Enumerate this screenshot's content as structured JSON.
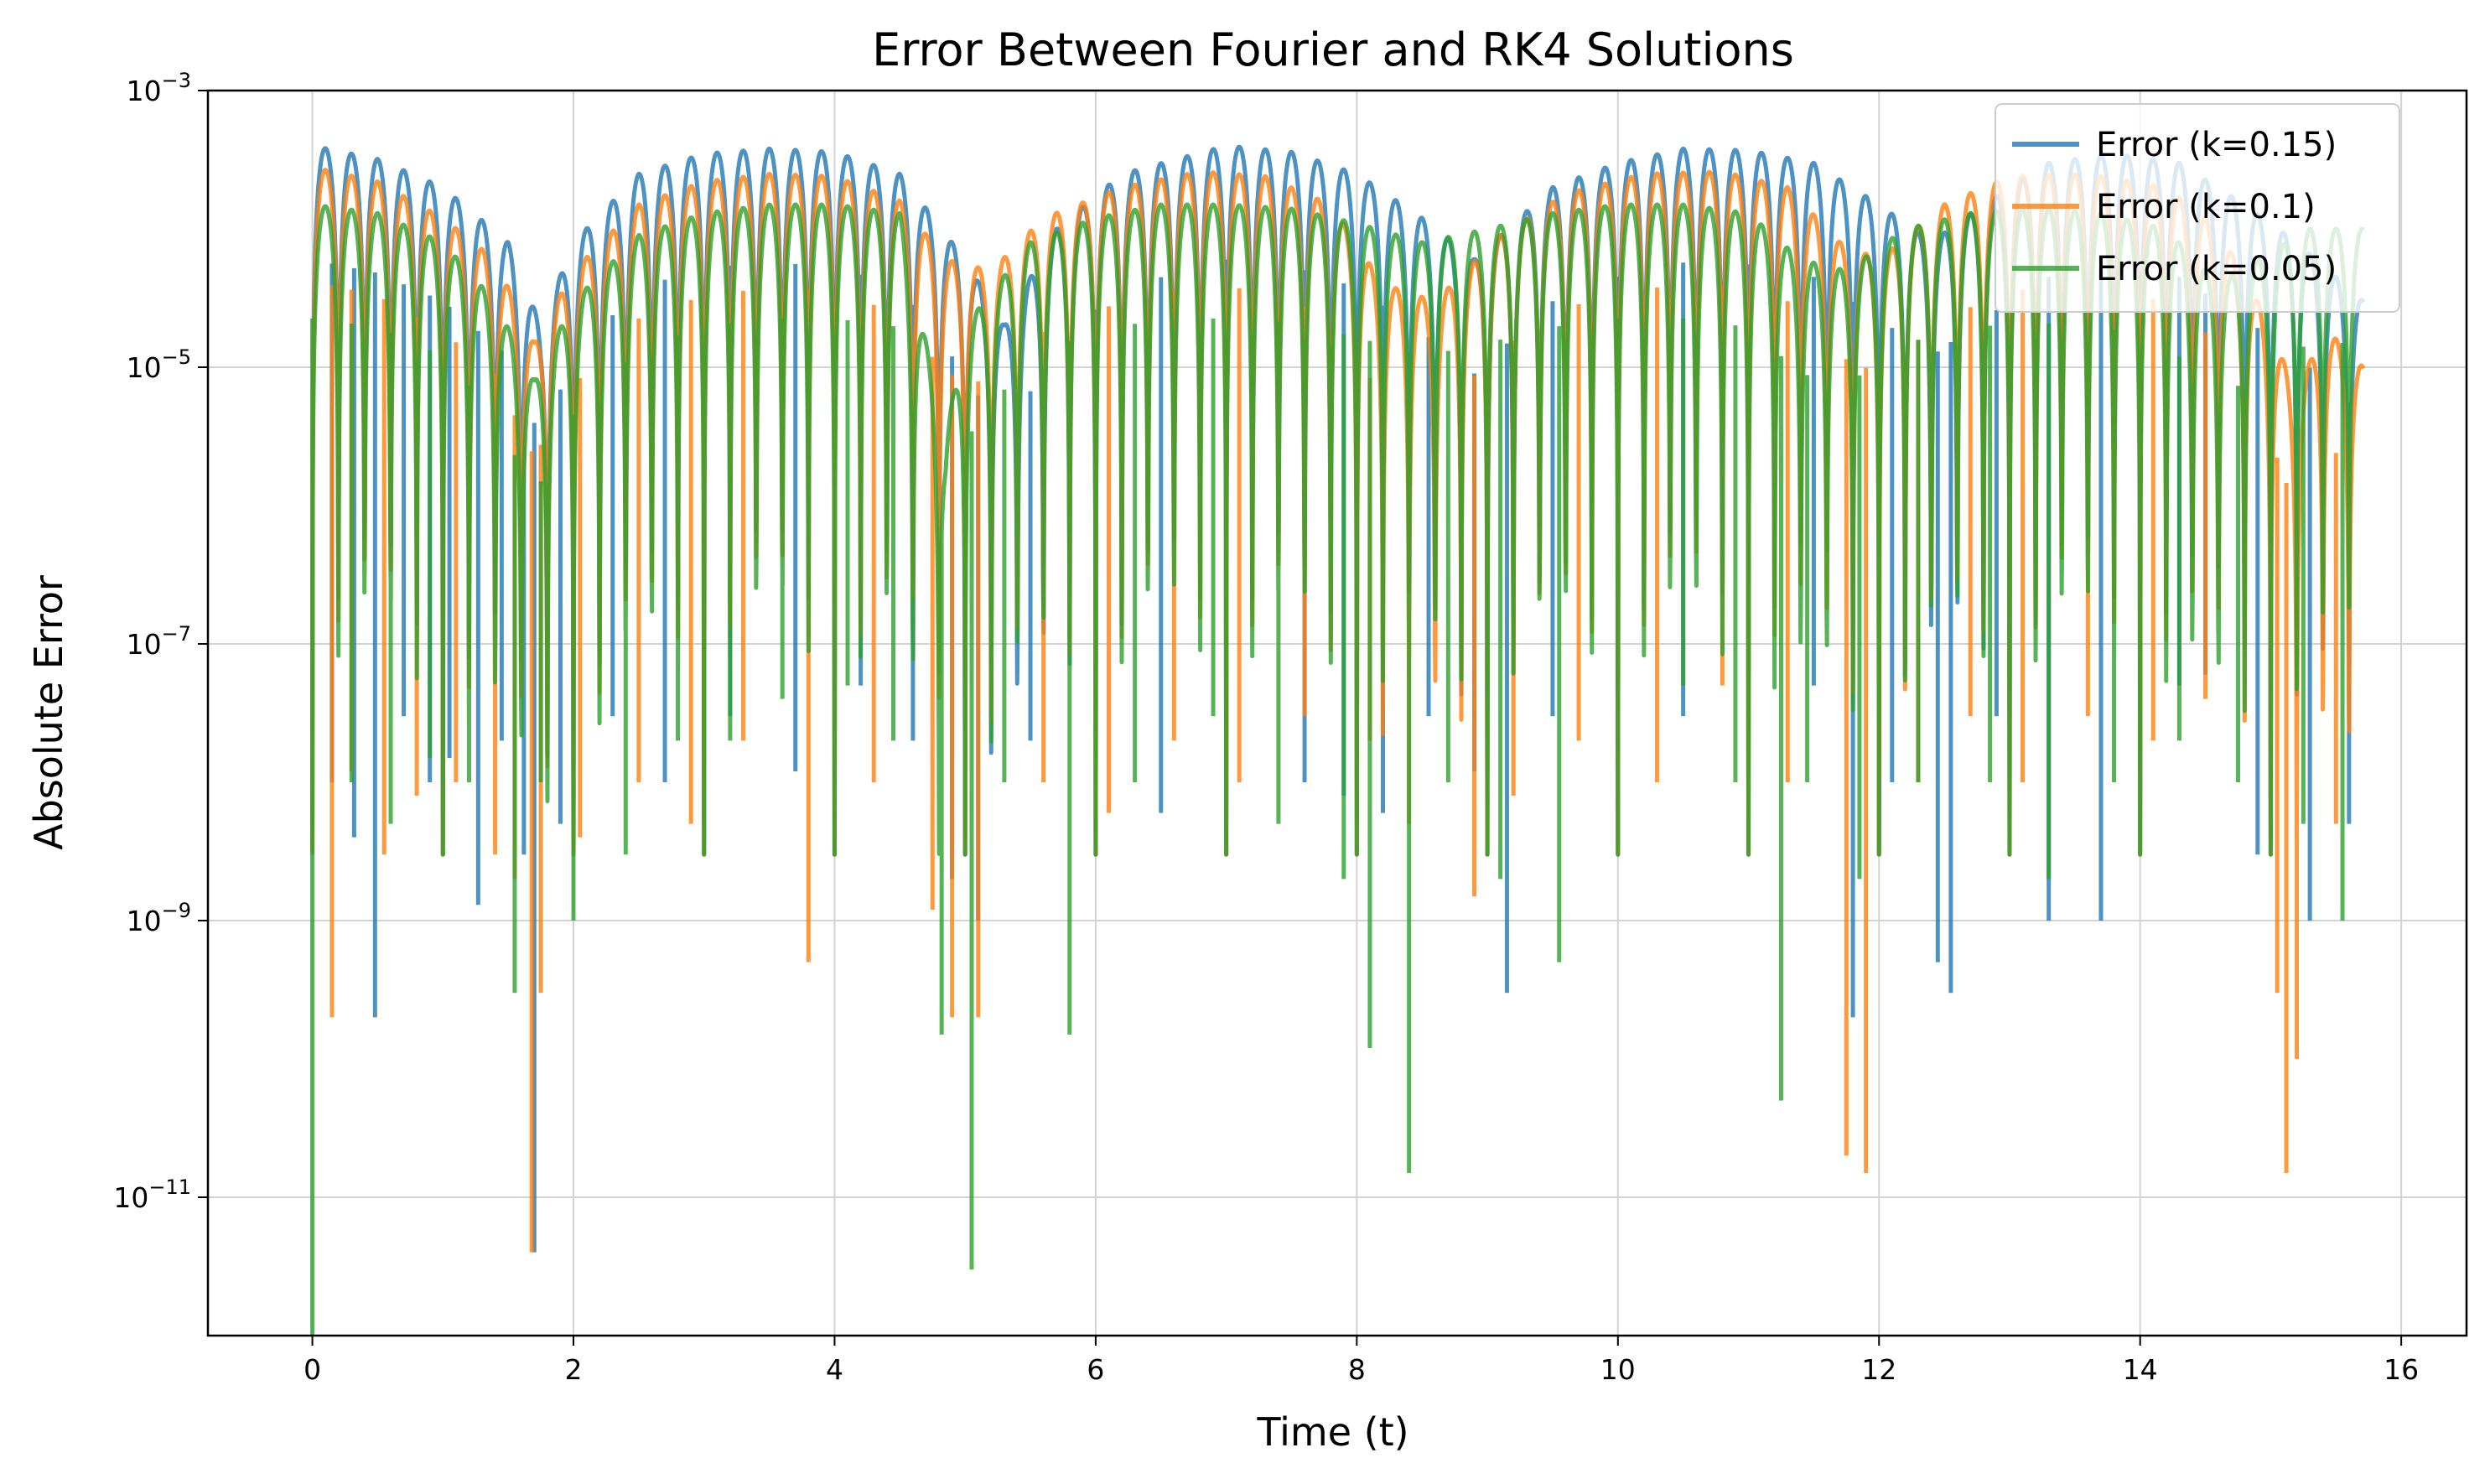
{
  "chart_data": {
    "type": "line",
    "title": "Error Between Fourier and RK4 Solutions",
    "xlabel": "Time (t)",
    "ylabel": "Absolute Error",
    "xlim": [
      -0.8,
      16.5
    ],
    "ylim": [
      1e-12,
      0.001
    ],
    "yscale": "log",
    "grid": true,
    "legend_position": "top-right",
    "x_ticks": [
      {
        "value": 0,
        "label": "0"
      },
      {
        "value": 2,
        "label": "2"
      },
      {
        "value": 4,
        "label": "4"
      },
      {
        "value": 6,
        "label": "6"
      },
      {
        "value": 8,
        "label": "8"
      },
      {
        "value": 10,
        "label": "10"
      },
      {
        "value": 12,
        "label": "12"
      },
      {
        "value": 14,
        "label": "14"
      },
      {
        "value": 16,
        "label": "16"
      }
    ],
    "y_ticks": [
      {
        "value": 1e-11,
        "base": "10",
        "exp": "−11"
      },
      {
        "value": 1e-09,
        "base": "10",
        "exp": "−9"
      },
      {
        "value": 1e-07,
        "base": "10",
        "exp": "−7"
      },
      {
        "value": 1e-05,
        "base": "10",
        "exp": "−5"
      },
      {
        "value": 0.001,
        "base": "10",
        "exp": "−3"
      }
    ],
    "series": [
      {
        "name": "Error (k=0.15)",
        "color": "#1f77b4",
        "t_max": 15.71,
        "oscillation_period": 0.2,
        "envelope": [
          [
            0.0,
            0.0004
          ],
          [
            0.5,
            0.00032
          ],
          [
            1.0,
            0.0002
          ],
          [
            1.5,
            8e-05
          ],
          [
            1.75,
            2e-05
          ],
          [
            2.0,
            8e-05
          ],
          [
            2.5,
            0.00025
          ],
          [
            3.0,
            0.00035
          ],
          [
            3.5,
            0.00038
          ],
          [
            4.0,
            0.00036
          ],
          [
            4.5,
            0.00025
          ],
          [
            5.0,
            6e-05
          ],
          [
            5.3,
            2e-05
          ],
          [
            5.7,
            0.0001
          ],
          [
            6.2,
            0.00025
          ],
          [
            7.0,
            0.0004
          ],
          [
            7.5,
            0.00036
          ],
          [
            8.0,
            0.00025
          ],
          [
            8.5,
            0.00012
          ],
          [
            8.9,
            6e-05
          ],
          [
            9.5,
            0.0002
          ],
          [
            10.0,
            0.0003
          ],
          [
            10.5,
            0.00038
          ],
          [
            11.0,
            0.00037
          ],
          [
            11.5,
            0.0003
          ],
          [
            12.0,
            0.00015
          ],
          [
            12.4,
            8e-05
          ],
          [
            12.8,
            0.00015
          ],
          [
            13.3,
            0.0003
          ],
          [
            13.8,
            0.00035
          ],
          [
            14.3,
            0.0003
          ],
          [
            14.8,
            0.00015
          ],
          [
            15.2,
            8e-05
          ],
          [
            15.71,
            3e-05
          ]
        ],
        "dips": [
          [
            0.15,
            1e-08
          ],
          [
            0.32,
            4e-09
          ],
          [
            0.48,
            2e-10
          ],
          [
            0.7,
            3e-08
          ],
          [
            0.9,
            1e-08
          ],
          [
            1.05,
            1.5e-08
          ],
          [
            1.27,
            1.3e-09
          ],
          [
            1.45,
            2e-08
          ],
          [
            1.62,
            3e-09
          ],
          [
            1.7,
            4e-12
          ],
          [
            1.9,
            5e-09
          ],
          [
            2.3,
            3e-08
          ],
          [
            2.7,
            1e-08
          ],
          [
            3.2,
            3e-08
          ],
          [
            3.7,
            1.2e-08
          ],
          [
            4.2,
            5e-08
          ],
          [
            4.6,
            2e-08
          ],
          [
            4.9,
            2e-09
          ],
          [
            5.1,
            1e-09
          ],
          [
            5.5,
            2e-08
          ],
          [
            6.0,
            1e-08
          ],
          [
            6.5,
            6e-09
          ],
          [
            7.0,
            3e-08
          ],
          [
            7.6,
            1e-08
          ],
          [
            7.9,
            8e-09
          ],
          [
            8.2,
            6e-09
          ],
          [
            8.55,
            3e-08
          ],
          [
            8.9,
            1.2e-08
          ],
          [
            9.15,
            3e-10
          ],
          [
            9.5,
            3e-08
          ],
          [
            10.0,
            1e-08
          ],
          [
            10.5,
            3e-08
          ],
          [
            11.0,
            1e-07
          ],
          [
            11.5,
            5e-08
          ],
          [
            11.8,
            2e-10
          ],
          [
            12.1,
            1e-08
          ],
          [
            12.45,
            5e-10
          ],
          [
            12.55,
            3e-10
          ],
          [
            12.9,
            3e-08
          ],
          [
            13.3,
            1e-09
          ],
          [
            13.7,
            1e-09
          ],
          [
            14.0,
            1e-08
          ],
          [
            14.3,
            5e-08
          ],
          [
            14.5,
            6e-08
          ],
          [
            14.9,
            3e-09
          ],
          [
            15.3,
            1e-09
          ],
          [
            15.6,
            5e-09
          ]
        ]
      },
      {
        "name": "Error (k=0.1)",
        "color": "#ff7f0e",
        "t_max": 15.71,
        "oscillation_period": 0.2,
        "envelope": [
          [
            0.0,
            0.00028
          ],
          [
            0.5,
            0.00022
          ],
          [
            1.0,
            0.00012
          ],
          [
            1.4,
            6e-05
          ],
          [
            1.7,
            1.5e-05
          ],
          [
            2.0,
            5e-05
          ],
          [
            2.5,
            0.00015
          ],
          [
            3.0,
            0.00022
          ],
          [
            3.5,
            0.00025
          ],
          [
            4.0,
            0.00024
          ],
          [
            4.5,
            0.00016
          ],
          [
            4.85,
            6e-05
          ],
          [
            5.2,
            5e-05
          ],
          [
            5.6,
            0.00012
          ],
          [
            6.2,
            0.0002
          ],
          [
            6.8,
            0.00026
          ],
          [
            7.3,
            0.00024
          ],
          [
            7.8,
            0.00015
          ],
          [
            8.2,
            4e-05
          ],
          [
            8.6,
            3e-05
          ],
          [
            9.1,
            9e-05
          ],
          [
            9.6,
            0.00018
          ],
          [
            10.2,
            0.00025
          ],
          [
            10.8,
            0.00026
          ],
          [
            11.3,
            0.0002
          ],
          [
            11.7,
            8e-05
          ],
          [
            12.0,
            6e-05
          ],
          [
            12.5,
            0.00015
          ],
          [
            13.0,
            0.00024
          ],
          [
            13.6,
            0.00025
          ],
          [
            14.2,
            0.0002
          ],
          [
            14.6,
            0.0001
          ],
          [
            15.0,
            2e-05
          ],
          [
            15.2,
            6e-06
          ],
          [
            15.4,
            2e-05
          ],
          [
            15.71,
            1e-05
          ]
        ],
        "dips": [
          [
            0.15,
            2e-10
          ],
          [
            0.3,
            1.2e-08
          ],
          [
            0.55,
            3e-09
          ],
          [
            0.8,
            8e-09
          ],
          [
            1.1,
            1e-08
          ],
          [
            1.4,
            3e-09
          ],
          [
            1.55,
            2e-09
          ],
          [
            1.68,
            4e-12
          ],
          [
            1.75,
            3e-10
          ],
          [
            2.05,
            4e-09
          ],
          [
            2.5,
            1e-08
          ],
          [
            2.9,
            5e-09
          ],
          [
            3.3,
            2e-08
          ],
          [
            3.8,
            5e-10
          ],
          [
            4.3,
            1e-08
          ],
          [
            4.75,
            1.2e-09
          ],
          [
            4.9,
            2e-10
          ],
          [
            5.1,
            2e-10
          ],
          [
            5.6,
            1e-08
          ],
          [
            6.1,
            6e-09
          ],
          [
            6.6,
            2e-08
          ],
          [
            7.1,
            1e-08
          ],
          [
            7.6,
            3e-08
          ],
          [
            8.1,
            2e-08
          ],
          [
            8.4,
            5e-09
          ],
          [
            8.9,
            1.5e-09
          ],
          [
            9.2,
            8e-09
          ],
          [
            9.7,
            2e-08
          ],
          [
            10.3,
            1e-08
          ],
          [
            10.8,
            5e-08
          ],
          [
            11.3,
            1e-08
          ],
          [
            11.75,
            2e-11
          ],
          [
            11.9,
            1.5e-11
          ],
          [
            12.3,
            1e-08
          ],
          [
            12.7,
            3e-08
          ],
          [
            13.1,
            1e-08
          ],
          [
            13.6,
            3e-08
          ],
          [
            14.1,
            2e-08
          ],
          [
            14.5,
            4e-08
          ],
          [
            15.05,
            3e-10
          ],
          [
            15.12,
            1.5e-11
          ],
          [
            15.2,
            1e-10
          ],
          [
            15.5,
            5e-09
          ]
        ]
      },
      {
        "name": "Error (k=0.05)",
        "color": "#2ca02c",
        "t_max": 15.71,
        "oscillation_period": 0.2,
        "envelope": [
          [
            0.0,
            0.00015
          ],
          [
            0.5,
            0.00013
          ],
          [
            1.0,
            8e-05
          ],
          [
            1.4,
            3e-05
          ],
          [
            1.7,
            8e-06
          ],
          [
            2.0,
            3e-05
          ],
          [
            2.5,
            9e-05
          ],
          [
            3.0,
            0.00013
          ],
          [
            3.5,
            0.00015
          ],
          [
            4.0,
            0.00015
          ],
          [
            4.5,
            0.00013
          ],
          [
            4.85,
            3e-06
          ],
          [
            5.0,
            2e-05
          ],
          [
            5.5,
            8e-05
          ],
          [
            6.0,
            0.00012
          ],
          [
            6.5,
            0.00015
          ],
          [
            7.0,
            0.00015
          ],
          [
            7.5,
            0.00014
          ],
          [
            8.0,
            0.00011
          ],
          [
            8.5,
            8e-05
          ],
          [
            9.0,
            0.0001
          ],
          [
            9.5,
            0.00013
          ],
          [
            10.0,
            0.00015
          ],
          [
            10.5,
            0.00015
          ],
          [
            11.0,
            0.00013
          ],
          [
            11.4,
            6e-05
          ],
          [
            11.75,
            5e-05
          ],
          [
            12.2,
            0.0001
          ],
          [
            12.7,
            0.00013
          ],
          [
            13.2,
            0.00014
          ],
          [
            13.7,
            0.00013
          ],
          [
            14.2,
            0.0001
          ],
          [
            14.6,
            4e-05
          ],
          [
            14.9,
            6e-05
          ],
          [
            15.3,
            0.0001
          ],
          [
            15.71,
            0.0001
          ]
        ],
        "dips": [
          [
            0.0,
            1e-12
          ],
          [
            0.3,
            1e-08
          ],
          [
            0.6,
            5e-09
          ],
          [
            0.9,
            1.5e-08
          ],
          [
            1.2,
            1e-08
          ],
          [
            1.55,
            3e-10
          ],
          [
            1.75,
            1e-08
          ],
          [
            2.0,
            1e-09
          ],
          [
            2.4,
            3e-09
          ],
          [
            2.8,
            2e-08
          ],
          [
            3.2,
            2e-08
          ],
          [
            3.6,
            4e-08
          ],
          [
            4.1,
            5e-08
          ],
          [
            4.45,
            2e-08
          ],
          [
            4.82,
            1.5e-10
          ],
          [
            5.05,
            3e-12
          ],
          [
            5.3,
            1e-08
          ],
          [
            5.8,
            1.5e-10
          ],
          [
            6.3,
            1e-08
          ],
          [
            6.9,
            3e-08
          ],
          [
            7.4,
            5e-09
          ],
          [
            7.9,
            2e-09
          ],
          [
            8.1,
            1.2e-10
          ],
          [
            8.4,
            1.5e-11
          ],
          [
            8.7,
            1e-08
          ],
          [
            9.1,
            2e-09
          ],
          [
            9.55,
            5e-10
          ],
          [
            10.0,
            2e-08
          ],
          [
            10.5,
            5e-08
          ],
          [
            10.9,
            1e-08
          ],
          [
            11.25,
            5e-11
          ],
          [
            11.45,
            1e-08
          ],
          [
            11.85,
            2e-09
          ],
          [
            12.3,
            1e-08
          ],
          [
            12.85,
            1e-08
          ],
          [
            13.3,
            2e-09
          ],
          [
            13.8,
            1e-08
          ],
          [
            14.3,
            2e-08
          ],
          [
            14.75,
            1e-08
          ],
          [
            15.25,
            5e-09
          ],
          [
            15.55,
            1e-09
          ]
        ]
      }
    ]
  }
}
